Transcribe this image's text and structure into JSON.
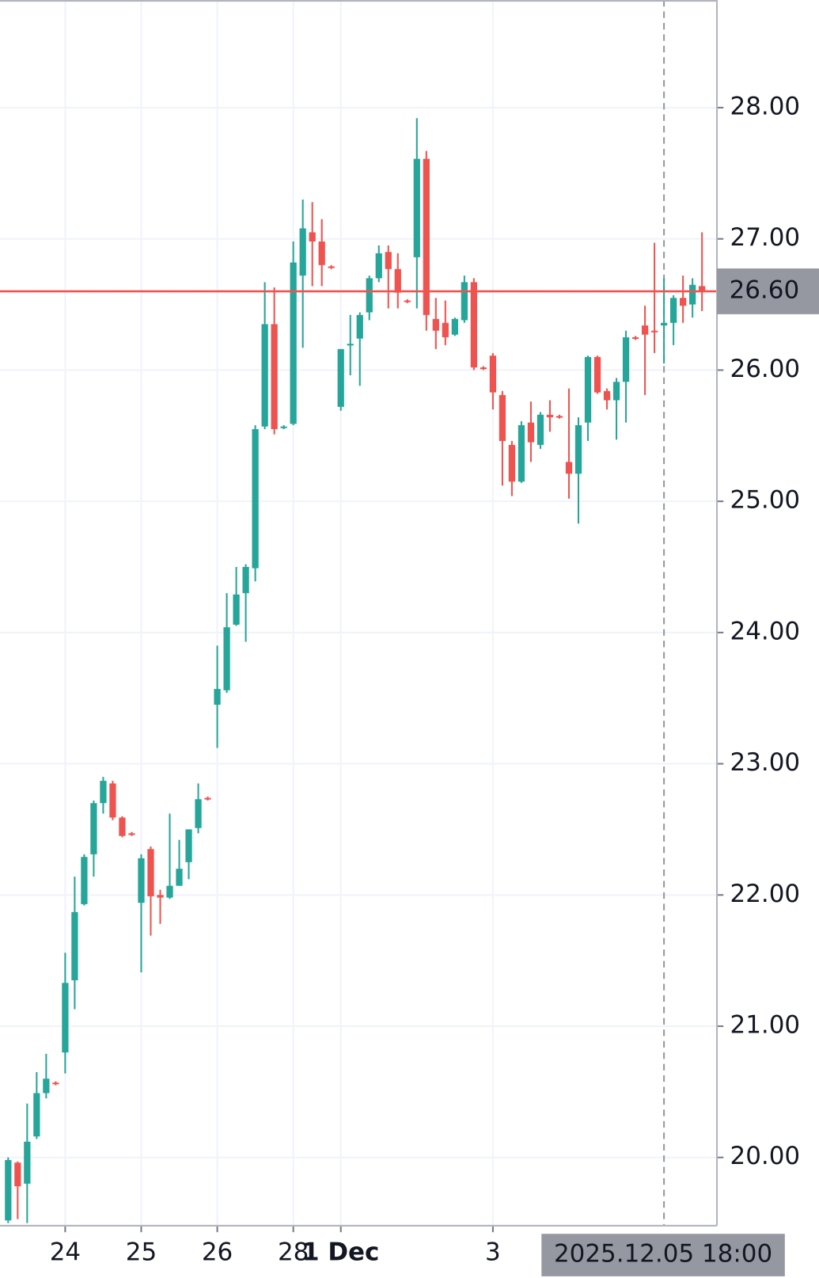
{
  "chart_data": {
    "type": "candlestick",
    "categories": [
      null,
      null,
      null,
      null,
      null,
      null,
      "24",
      null,
      null,
      null,
      null,
      null,
      null,
      null,
      "25",
      null,
      null,
      null,
      null,
      null,
      null,
      null,
      "26",
      null,
      null,
      null,
      null,
      null,
      null,
      null,
      "28",
      null,
      null,
      null,
      null,
      "1 Dec",
      null,
      null,
      null,
      null,
      null,
      null,
      null,
      null,
      null,
      null,
      null,
      null,
      null,
      null,
      null,
      "3",
      null,
      null,
      null,
      null,
      null,
      null,
      null,
      null,
      null,
      null,
      null,
      null,
      null,
      null,
      null,
      null,
      null,
      null,
      null,
      null,
      null,
      null
    ],
    "open": [
      19.52,
      19.96,
      19.8,
      20.16,
      20.49,
      20.57,
      20.8,
      21.35,
      21.93,
      22.31,
      22.7,
      22.85,
      22.59,
      22.47,
      21.94,
      22.35,
      22.0,
      21.98,
      22.07,
      22.25,
      22.51,
      22.74,
      23.45,
      23.56,
      24.06,
      24.3,
      24.49,
      25.57,
      26.35,
      25.56,
      25.59,
      26.72,
      27.05,
      26.98,
      26.79,
      25.72,
      26.19,
      26.24,
      26.44,
      26.7,
      26.9,
      26.77,
      26.53,
      26.86,
      27.61,
      26.39,
      26.36,
      26.27,
      26.38,
      26.67,
      26.02,
      26.11,
      25.81,
      25.43,
      25.15,
      25.6,
      25.43,
      25.66,
      25.65,
      25.3,
      25.21,
      25.6,
      26.1,
      25.84,
      25.77,
      25.91,
      26.25,
      26.34,
      26.3,
      26.34,
      26.36,
      26.55,
      26.5,
      26.64
    ],
    "high": [
      20.0,
      19.97,
      20.41,
      20.65,
      20.79,
      20.58,
      21.56,
      22.14,
      22.31,
      22.72,
      22.9,
      22.87,
      22.6,
      22.48,
      22.31,
      22.37,
      22.04,
      22.62,
      22.42,
      22.5,
      22.85,
      22.75,
      23.9,
      24.3,
      24.5,
      24.52,
      25.58,
      26.67,
      26.63,
      25.58,
      26.98,
      27.3,
      27.28,
      27.15,
      26.8,
      26.16,
      26.42,
      26.44,
      26.72,
      26.95,
      26.95,
      26.89,
      26.54,
      27.92,
      27.67,
      26.55,
      26.53,
      26.4,
      26.72,
      26.7,
      26.03,
      26.13,
      25.84,
      25.46,
      25.61,
      25.76,
      25.68,
      25.77,
      25.66,
      25.86,
      25.64,
      26.11,
      26.11,
      25.86,
      25.94,
      26.3,
      26.26,
      26.49,
      26.97,
      26.7,
      26.57,
      26.72,
      26.7,
      27.05
    ],
    "low": [
      19.5,
      19.53,
      19.5,
      20.14,
      20.45,
      20.55,
      20.64,
      21.13,
      21.92,
      22.14,
      22.62,
      22.57,
      22.44,
      22.45,
      21.41,
      21.69,
      21.78,
      21.97,
      22.07,
      22.12,
      22.47,
      22.72,
      23.12,
      23.54,
      24.05,
      23.93,
      24.39,
      25.55,
      25.51,
      25.55,
      25.58,
      26.17,
      26.64,
      26.64,
      26.77,
      25.69,
      25.96,
      25.88,
      26.38,
      26.67,
      26.47,
      26.47,
      26.51,
      26.47,
      26.3,
      26.16,
      26.19,
      26.26,
      26.36,
      26.0,
      26.0,
      25.7,
      25.12,
      25.04,
      25.14,
      25.3,
      25.4,
      25.53,
      25.63,
      25.02,
      24.83,
      25.46,
      25.82,
      25.7,
      25.47,
      25.6,
      26.23,
      25.81,
      26.13,
      26.05,
      26.19,
      26.36,
      26.4,
      26.45
    ],
    "close": [
      19.98,
      19.78,
      20.12,
      20.49,
      20.6,
      20.56,
      21.33,
      21.87,
      22.29,
      22.7,
      22.87,
      22.59,
      22.45,
      22.46,
      22.28,
      21.99,
      21.98,
      22.07,
      22.2,
      22.5,
      22.73,
      22.73,
      23.57,
      24.04,
      24.29,
      24.5,
      25.55,
      26.35,
      25.55,
      25.57,
      26.82,
      27.08,
      26.98,
      26.8,
      26.78,
      26.16,
      26.2,
      26.42,
      26.7,
      26.89,
      26.77,
      26.59,
      26.52,
      27.61,
      26.42,
      26.3,
      26.25,
      26.39,
      26.67,
      26.02,
      26.01,
      25.83,
      25.46,
      25.15,
      25.58,
      25.45,
      25.66,
      25.64,
      25.64,
      25.21,
      25.58,
      26.1,
      25.83,
      25.77,
      25.91,
      26.25,
      26.24,
      26.27,
      26.29,
      26.36,
      26.55,
      26.49,
      26.65,
      26.6
    ],
    "up_color": "#26a69a",
    "down_color": "#ef5350",
    "ylim": [
      19.48,
      28.82
    ],
    "yticks": [
      {
        "value": 20,
        "label": "20.00"
      },
      {
        "value": 21,
        "label": "21.00"
      },
      {
        "value": 22,
        "label": "22.00"
      },
      {
        "value": 23,
        "label": "23.00"
      },
      {
        "value": 24,
        "label": "24.00"
      },
      {
        "value": 25,
        "label": "25.00"
      },
      {
        "value": 26,
        "label": "26.00"
      },
      {
        "value": 27,
        "label": "27.00"
      },
      {
        "value": 28,
        "label": "28.00"
      }
    ],
    "grid": true,
    "last_price": 26.6,
    "last_price_color": "#ef5350",
    "crosshair": {
      "label": "2025.12.05 18:00",
      "category_index": 69,
      "price": {
        "value": 26.6,
        "label": "26.60"
      }
    }
  }
}
